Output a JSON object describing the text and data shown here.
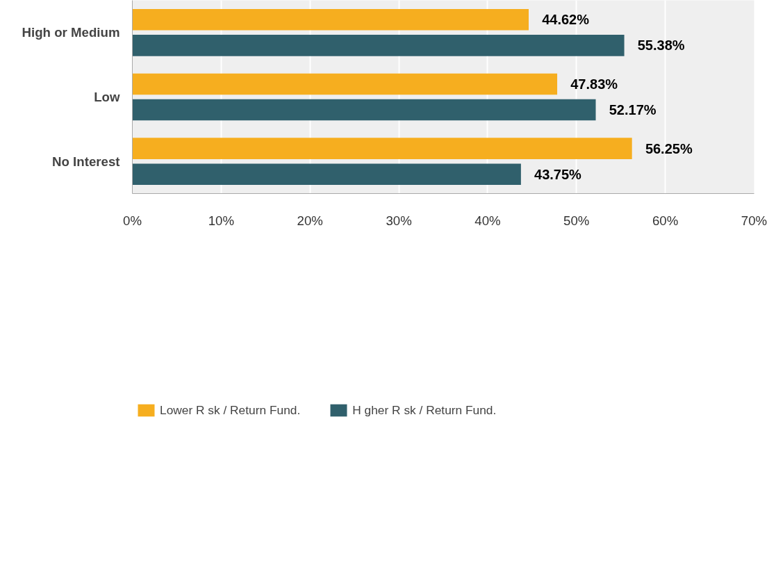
{
  "chart_data": {
    "type": "bar",
    "orientation": "horizontal",
    "categories": [
      "High or Medium",
      "Low",
      "No Interest"
    ],
    "series": [
      {
        "name": "Lower R sk / Return Fund.",
        "color": "#f6ae1f",
        "values": [
          44.62,
          47.83,
          56.25
        ],
        "value_labels": [
          "44.62%",
          "47.83%",
          "56.25%"
        ]
      },
      {
        "name": "H gher R sk / Return Fund.",
        "color": "#30606c",
        "values": [
          55.38,
          52.17,
          43.75
        ],
        "value_labels": [
          "55.38%",
          "52.17%",
          "43.75%"
        ]
      }
    ],
    "xlim": [
      0,
      70
    ],
    "xticks": [
      {
        "value": 0,
        "label": "0%"
      },
      {
        "value": 10,
        "label": "10%"
      },
      {
        "value": 20,
        "label": "20%"
      },
      {
        "value": 30,
        "label": "30%"
      },
      {
        "value": 40,
        "label": "40%"
      },
      {
        "value": 50,
        "label": "50%"
      },
      {
        "value": 60,
        "label": "60%"
      },
      {
        "value": 70,
        "label": "70%"
      }
    ],
    "grid": "x",
    "legend": "bottom"
  }
}
